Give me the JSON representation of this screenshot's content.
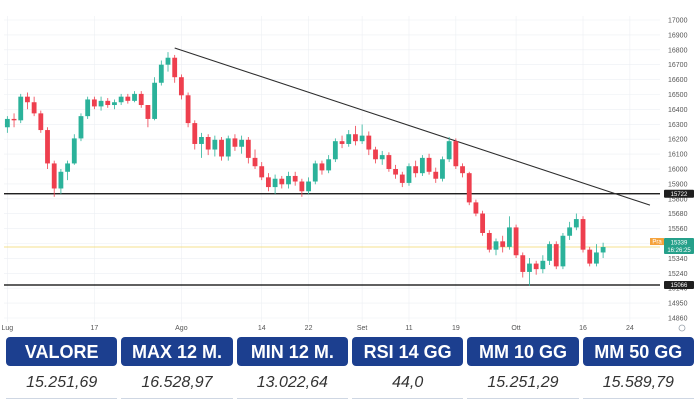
{
  "colors": {
    "up": "#2bb29a",
    "down": "#ee3f4e",
    "trendline": "#2d2d2d",
    "support_line": "#000000",
    "grid": "#eceff3",
    "current_price_line": "#f0d96a",
    "tag_dark": "#1f1f1f",
    "tag_orange": "#f5a23a",
    "tag_green": "#25a08a",
    "stats_header_bg": "#1c3f8f"
  },
  "chart_data": {
    "type": "candlestick",
    "ylim": [
      14800,
      17000
    ],
    "y_ticks": [
      "17000",
      "16900",
      "16800",
      "16700",
      "16600",
      "16500",
      "16400",
      "16300",
      "16200",
      "16100",
      "16000",
      "15900",
      "15800",
      "15680",
      "15560",
      "15440",
      "15340",
      "15240",
      "15140",
      "14950",
      "14860"
    ],
    "x_tick_labels": [
      "Lug",
      "17",
      "Ago",
      "14",
      "22",
      "Set",
      "11",
      "19",
      "Ott",
      "16",
      "24"
    ],
    "x_tick_index": [
      0,
      13,
      26,
      38,
      45,
      53,
      60,
      67,
      76,
      86,
      93
    ],
    "n_slots": 98,
    "resistance_line": {
      "from_index": 25,
      "from_value": 16770,
      "to_index": 96,
      "to_value": 15640
    },
    "support_line_high": 15722,
    "support_line_low": 15066,
    "current_price": 15339,
    "labels": {
      "support_high": "15722",
      "support_low": "15066",
      "price_tag": "15339",
      "price_tag_prefix": "Pra",
      "time_tag": "16:26:25"
    },
    "candles": [
      {
        "o": 16200,
        "h": 16280,
        "l": 16160,
        "c": 16260
      },
      {
        "o": 16260,
        "h": 16300,
        "l": 16200,
        "c": 16250
      },
      {
        "o": 16250,
        "h": 16440,
        "l": 16230,
        "c": 16420
      },
      {
        "o": 16420,
        "h": 16450,
        "l": 16330,
        "c": 16380
      },
      {
        "o": 16380,
        "h": 16420,
        "l": 16280,
        "c": 16300
      },
      {
        "o": 16300,
        "h": 16320,
        "l": 16160,
        "c": 16180
      },
      {
        "o": 16180,
        "h": 16200,
        "l": 15900,
        "c": 15940
      },
      {
        "o": 15940,
        "h": 15960,
        "l": 15700,
        "c": 15760
      },
      {
        "o": 15760,
        "h": 15900,
        "l": 15720,
        "c": 15880
      },
      {
        "o": 15880,
        "h": 15960,
        "l": 15820,
        "c": 15940
      },
      {
        "o": 15940,
        "h": 16150,
        "l": 15930,
        "c": 16120
      },
      {
        "o": 16120,
        "h": 16300,
        "l": 16100,
        "c": 16280
      },
      {
        "o": 16280,
        "h": 16420,
        "l": 16260,
        "c": 16400
      },
      {
        "o": 16400,
        "h": 16420,
        "l": 16330,
        "c": 16350
      },
      {
        "o": 16350,
        "h": 16420,
        "l": 16320,
        "c": 16390
      },
      {
        "o": 16390,
        "h": 16410,
        "l": 16340,
        "c": 16360
      },
      {
        "o": 16360,
        "h": 16400,
        "l": 16330,
        "c": 16380
      },
      {
        "o": 16380,
        "h": 16440,
        "l": 16360,
        "c": 16420
      },
      {
        "o": 16420,
        "h": 16440,
        "l": 16370,
        "c": 16390
      },
      {
        "o": 16390,
        "h": 16460,
        "l": 16380,
        "c": 16440
      },
      {
        "o": 16440,
        "h": 16460,
        "l": 16340,
        "c": 16360
      },
      {
        "o": 16360,
        "h": 16360,
        "l": 16200,
        "c": 16260
      },
      {
        "o": 16260,
        "h": 16560,
        "l": 16250,
        "c": 16520
      },
      {
        "o": 16520,
        "h": 16680,
        "l": 16500,
        "c": 16650
      },
      {
        "o": 16650,
        "h": 16740,
        "l": 16600,
        "c": 16700
      },
      {
        "o": 16700,
        "h": 16720,
        "l": 16520,
        "c": 16560
      },
      {
        "o": 16560,
        "h": 16580,
        "l": 16400,
        "c": 16430
      },
      {
        "o": 16430,
        "h": 16450,
        "l": 16200,
        "c": 16230
      },
      {
        "o": 16230,
        "h": 16250,
        "l": 16040,
        "c": 16080
      },
      {
        "o": 16080,
        "h": 16160,
        "l": 15980,
        "c": 16130
      },
      {
        "o": 16130,
        "h": 16150,
        "l": 16000,
        "c": 16040
      },
      {
        "o": 16040,
        "h": 16140,
        "l": 15990,
        "c": 16110
      },
      {
        "o": 16110,
        "h": 16130,
        "l": 15960,
        "c": 15990
      },
      {
        "o": 15990,
        "h": 16140,
        "l": 15960,
        "c": 16120
      },
      {
        "o": 16120,
        "h": 16150,
        "l": 16030,
        "c": 16060
      },
      {
        "o": 16060,
        "h": 16140,
        "l": 16010,
        "c": 16110
      },
      {
        "o": 16110,
        "h": 16130,
        "l": 15940,
        "c": 15980
      },
      {
        "o": 15980,
        "h": 16040,
        "l": 15900,
        "c": 15920
      },
      {
        "o": 15920,
        "h": 15950,
        "l": 15820,
        "c": 15840
      },
      {
        "o": 15840,
        "h": 15870,
        "l": 15740,
        "c": 15770
      },
      {
        "o": 15770,
        "h": 15860,
        "l": 15720,
        "c": 15830
      },
      {
        "o": 15830,
        "h": 15850,
        "l": 15760,
        "c": 15790
      },
      {
        "o": 15790,
        "h": 15880,
        "l": 15760,
        "c": 15850
      },
      {
        "o": 15850,
        "h": 15880,
        "l": 15780,
        "c": 15810
      },
      {
        "o": 15810,
        "h": 15830,
        "l": 15700,
        "c": 15740
      },
      {
        "o": 15740,
        "h": 15840,
        "l": 15720,
        "c": 15810
      },
      {
        "o": 15810,
        "h": 15960,
        "l": 15790,
        "c": 15940
      },
      {
        "o": 15940,
        "h": 15960,
        "l": 15860,
        "c": 15890
      },
      {
        "o": 15890,
        "h": 16000,
        "l": 15870,
        "c": 15970
      },
      {
        "o": 15970,
        "h": 16120,
        "l": 15950,
        "c": 16100
      },
      {
        "o": 16100,
        "h": 16140,
        "l": 16050,
        "c": 16080
      },
      {
        "o": 16080,
        "h": 16180,
        "l": 16060,
        "c": 16150
      },
      {
        "o": 16150,
        "h": 16210,
        "l": 16070,
        "c": 16100
      },
      {
        "o": 16100,
        "h": 16220,
        "l": 16080,
        "c": 16140
      },
      {
        "o": 16140,
        "h": 16170,
        "l": 16000,
        "c": 16040
      },
      {
        "o": 16040,
        "h": 16060,
        "l": 15940,
        "c": 15970
      },
      {
        "o": 15970,
        "h": 16030,
        "l": 15930,
        "c": 16000
      },
      {
        "o": 16000,
        "h": 16020,
        "l": 15880,
        "c": 15900
      },
      {
        "o": 15900,
        "h": 15930,
        "l": 15830,
        "c": 15860
      },
      {
        "o": 15860,
        "h": 15880,
        "l": 15770,
        "c": 15800
      },
      {
        "o": 15800,
        "h": 15940,
        "l": 15780,
        "c": 15920
      },
      {
        "o": 15920,
        "h": 15960,
        "l": 15840,
        "c": 15870
      },
      {
        "o": 15870,
        "h": 16000,
        "l": 15850,
        "c": 15980
      },
      {
        "o": 15980,
        "h": 16010,
        "l": 15860,
        "c": 15880
      },
      {
        "o": 15880,
        "h": 15910,
        "l": 15800,
        "c": 15830
      },
      {
        "o": 15830,
        "h": 15990,
        "l": 15810,
        "c": 15970
      },
      {
        "o": 15970,
        "h": 16130,
        "l": 15950,
        "c": 16100
      },
      {
        "o": 16100,
        "h": 16120,
        "l": 15900,
        "c": 15920
      },
      {
        "o": 15920,
        "h": 15940,
        "l": 15840,
        "c": 15870
      },
      {
        "o": 15870,
        "h": 15880,
        "l": 15640,
        "c": 15660
      },
      {
        "o": 15660,
        "h": 15680,
        "l": 15560,
        "c": 15580
      },
      {
        "o": 15580,
        "h": 15600,
        "l": 15420,
        "c": 15440
      },
      {
        "o": 15440,
        "h": 15460,
        "l": 15300,
        "c": 15320
      },
      {
        "o": 15320,
        "h": 15400,
        "l": 15280,
        "c": 15380
      },
      {
        "o": 15380,
        "h": 15420,
        "l": 15300,
        "c": 15340
      },
      {
        "o": 15340,
        "h": 15560,
        "l": 15320,
        "c": 15480
      },
      {
        "o": 15480,
        "h": 15500,
        "l": 15260,
        "c": 15280
      },
      {
        "o": 15280,
        "h": 15300,
        "l": 15120,
        "c": 15160
      },
      {
        "o": 15160,
        "h": 15260,
        "l": 15060,
        "c": 15220
      },
      {
        "o": 15220,
        "h": 15240,
        "l": 15140,
        "c": 15180
      },
      {
        "o": 15180,
        "h": 15280,
        "l": 15150,
        "c": 15240
      },
      {
        "o": 15240,
        "h": 15380,
        "l": 15210,
        "c": 15360
      },
      {
        "o": 15360,
        "h": 15380,
        "l": 15180,
        "c": 15200
      },
      {
        "o": 15200,
        "h": 15440,
        "l": 15180,
        "c": 15420
      },
      {
        "o": 15420,
        "h": 15520,
        "l": 15390,
        "c": 15480
      },
      {
        "o": 15480,
        "h": 15580,
        "l": 15460,
        "c": 15540
      },
      {
        "o": 15540,
        "h": 15560,
        "l": 15300,
        "c": 15320
      },
      {
        "o": 15320,
        "h": 15340,
        "l": 15200,
        "c": 15220
      },
      {
        "o": 15220,
        "h": 15360,
        "l": 15200,
        "c": 15300
      },
      {
        "o": 15300,
        "h": 15370,
        "l": 15260,
        "c": 15339
      }
    ]
  },
  "stats": [
    {
      "label": "VALORE",
      "value": "15.251,69"
    },
    {
      "label": "MAX 12 M.",
      "value": "16.528,97"
    },
    {
      "label": "MIN 12 M.",
      "value": "13.022,64"
    },
    {
      "label": "RSI 14 GG",
      "value": "44,0"
    },
    {
      "label": "MM 10 GG",
      "value": "15.251,29"
    },
    {
      "label": "MM 50 GG",
      "value": "15.589,79"
    }
  ]
}
